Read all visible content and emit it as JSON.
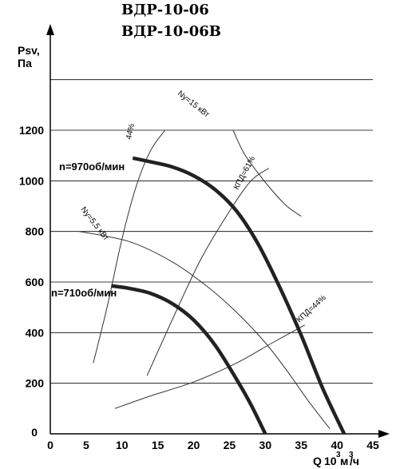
{
  "titles": [
    "ВДР-10-06",
    "ВДР-10-06В"
  ],
  "chart_data": {
    "type": "line",
    "xlabel": "Q 10³ м³/ч",
    "xlabel_parts": {
      "q": "Q",
      "ten": "10",
      "exp1": "3",
      "m": "м",
      "exp2": "3",
      "h": "/ч"
    },
    "ylabel": [
      "Psv,",
      "Па"
    ],
    "xlim": [
      0,
      45
    ],
    "ylim": [
      0,
      1400
    ],
    "xticks": [
      0,
      5,
      10,
      15,
      20,
      25,
      30,
      35,
      40,
      45
    ],
    "yticks": [
      0,
      200,
      400,
      600,
      800,
      1000,
      1200
    ],
    "grid": "horizontal",
    "series": [
      {
        "name": "n=970об/мин",
        "kind": "fan-curve",
        "x": [
          11.5,
          14,
          17,
          20,
          23,
          26,
          29,
          32,
          35,
          38,
          41
        ],
        "y": [
          1090,
          1075,
          1055,
          1020,
          965,
          880,
          750,
          580,
          390,
          180,
          0
        ]
      },
      {
        "name": "n=710об/мин",
        "kind": "fan-curve",
        "x": [
          8.5,
          11,
          14,
          17,
          20,
          23,
          26,
          28,
          30
        ],
        "y": [
          585,
          575,
          555,
          515,
          450,
          350,
          215,
          115,
          0
        ]
      }
    ],
    "aux_lines": [
      {
        "name": "44%",
        "x": [
          6,
          8,
          10,
          12,
          14,
          16
        ],
        "y": [
          280,
          510,
          770,
          980,
          1120,
          1200
        ]
      },
      {
        "name": "КПД=61%",
        "x": [
          13.5,
          17,
          21,
          25,
          28,
          30.5
        ],
        "y": [
          230,
          450,
          690,
          880,
          1000,
          1050
        ]
      },
      {
        "name": "КПД=44%",
        "x": [
          9,
          14,
          20,
          26,
          31,
          35.5
        ],
        "y": [
          100,
          150,
          205,
          280,
          360,
          430
        ]
      },
      {
        "name": "Ny=5.5 кВт",
        "x": [
          4,
          11,
          17,
          22,
          26,
          30,
          33,
          36,
          39
        ],
        "y": [
          800,
          760,
          680,
          580,
          480,
          360,
          250,
          130,
          20
        ]
      },
      {
        "name": "Ny=15 кВт",
        "x": [
          25.5,
          27,
          29,
          31,
          33,
          35
        ],
        "y": [
          1200,
          1110,
          1030,
          960,
          900,
          860
        ]
      }
    ],
    "annotations": {
      "n970": "n=970об/мин",
      "n710": "n=710об/мин",
      "eff44_top": "44%",
      "eff61": "КПД=61%",
      "eff44_low": "КПД=44%",
      "ny55": "Ny=5,5 кВт",
      "ny15": "Ny=15 кВт"
    },
    "colors": {
      "curve": "#222222",
      "aux": "#333333",
      "grid": "#000000"
    }
  }
}
